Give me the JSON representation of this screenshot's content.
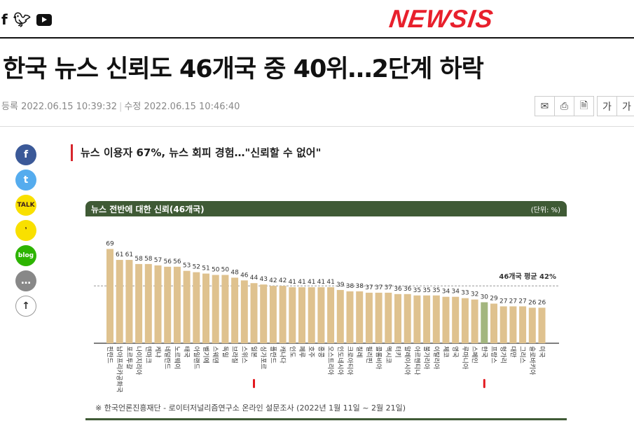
{
  "header": {
    "social_icons": [
      "facebook-icon",
      "twitter-icon",
      "youtube-icon"
    ],
    "logo": "NEWSIS"
  },
  "article": {
    "title": "한국 뉴스 신뢰도 46개국 중 40위…2단계 하락",
    "registered_label": "등록",
    "registered": "2022.06.15 10:39:32",
    "modified_label": "수정",
    "modified": "2022.06.15 10:46:40",
    "tools": [
      "mail-icon",
      "print-icon",
      "pdf-icon"
    ],
    "font_buttons": [
      "가",
      "가"
    ],
    "subtitle": "뉴스 이용자 67%, 뉴스 회피 경험…\"신뢰할 수 없어\"",
    "share": [
      {
        "name": "facebook",
        "label": "f",
        "color": "#3b5998"
      },
      {
        "name": "twitter",
        "label": "t",
        "color": "#55acee"
      },
      {
        "name": "kakaotalk",
        "label": "TALK",
        "color": "#f9e000"
      },
      {
        "name": "kakaostory",
        "label": "❜",
        "color": "#f9e000"
      },
      {
        "name": "blog",
        "label": "blog",
        "color": "#2db400"
      },
      {
        "name": "comment",
        "label": "…",
        "color": "#888888"
      },
      {
        "name": "top",
        "label": "↑",
        "color": "#ffffff"
      }
    ]
  },
  "chart_data": {
    "type": "bar",
    "title": "뉴스 전반에 대한 신뢰(46개국)",
    "unit": "(단위: %)",
    "average_label": "46개국 평균 42%",
    "average": 42,
    "categories": [
      "핀란드",
      "남아프리카공화국",
      "포르투갈",
      "나이지리아",
      "덴마크",
      "케냐",
      "네덜란드",
      "노르웨이",
      "태국",
      "아일랜드",
      "벨기에",
      "스웨덴",
      "독일",
      "브라질",
      "스위스",
      "일본",
      "싱가포르",
      "폴란드",
      "캐나다",
      "인도",
      "페루",
      "호주",
      "홍콩",
      "오스트리아",
      "인도네시아",
      "크로아티아",
      "칠레",
      "필리핀",
      "콜롬비아",
      "멕시코",
      "터키",
      "말레이시아",
      "아르헨티나",
      "불가리아",
      "이탈리아",
      "체코",
      "영국",
      "루마니아",
      "스페인",
      "한국",
      "프랑스",
      "헝가리",
      "대만",
      "그리스",
      "슬로바키아",
      "미국"
    ],
    "values": [
      69,
      61,
      61,
      58,
      58,
      57,
      56,
      56,
      53,
      52,
      51,
      50,
      50,
      48,
      46,
      44,
      43,
      42,
      42,
      41,
      41,
      41,
      41,
      41,
      39,
      38,
      38,
      37,
      37,
      37,
      36,
      36,
      35,
      35,
      35,
      34,
      34,
      33,
      32,
      30,
      29,
      27,
      27,
      27,
      26,
      26
    ],
    "highlight": "한국",
    "marked": [
      "일본",
      "한국"
    ],
    "colors": {
      "bar": "#dfc28f",
      "highlight": "#a3b67f",
      "marker": "#e3191f",
      "header": "#3f5a35"
    },
    "source": "※ 한국언론진흥재단 - 로이터저널리즘연구소 온라인 설문조사 (2022년 1월 11일 ~ 2월 21일)"
  }
}
